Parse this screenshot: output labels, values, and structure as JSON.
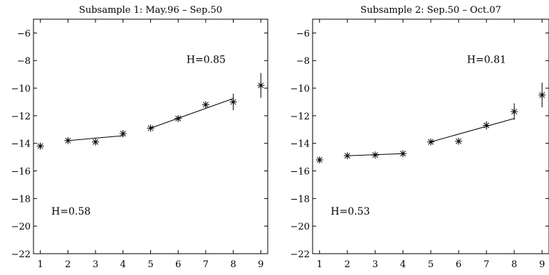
{
  "chart_data": [
    {
      "type": "scatter",
      "title": "Subsample 1: May.96 – Sep.50",
      "xlabel": "",
      "ylabel": "",
      "xlim": [
        0.75,
        9.25
      ],
      "ylim": [
        -22,
        -5
      ],
      "xticks": [
        1,
        2,
        3,
        4,
        5,
        6,
        7,
        8,
        9
      ],
      "yticks": [
        -6,
        -8,
        -10,
        -12,
        -14,
        -16,
        -18,
        -20,
        -22
      ],
      "grid": false,
      "points": [
        {
          "x": 1,
          "y": -14.2,
          "err": 0.15
        },
        {
          "x": 2,
          "y": -13.8,
          "err": 0.15
        },
        {
          "x": 3,
          "y": -13.9,
          "err": 0.15
        },
        {
          "x": 4,
          "y": -13.3,
          "err": 0.2
        },
        {
          "x": 5,
          "y": -12.9,
          "err": 0.15
        },
        {
          "x": 6,
          "y": -12.2,
          "err": 0.15
        },
        {
          "x": 7,
          "y": -11.2,
          "err": 0.2
        },
        {
          "x": 8,
          "y": -11.0,
          "err": 0.6
        },
        {
          "x": 9,
          "y": -9.8,
          "err": 0.9
        }
      ],
      "fit_lines": [
        {
          "x1": 2,
          "y1": -13.8,
          "x2": 4,
          "y2": -13.45
        },
        {
          "x1": 5,
          "y1": -12.9,
          "x2": 8,
          "y2": -10.75
        }
      ],
      "annotations": [
        {
          "text": "H=0.85",
          "x": 6.3,
          "y": -7.9
        },
        {
          "text": "H=0.58",
          "x": 1.4,
          "y": -18.9
        }
      ]
    },
    {
      "type": "scatter",
      "title": "Subsample 2: Sep.50 – Oct.07",
      "xlabel": "",
      "ylabel": "",
      "xlim": [
        0.75,
        9.25
      ],
      "ylim": [
        -22,
        -5
      ],
      "xticks": [
        1,
        2,
        3,
        4,
        5,
        6,
        7,
        8,
        9
      ],
      "yticks": [
        -6,
        -8,
        -10,
        -12,
        -14,
        -16,
        -18,
        -20,
        -22
      ],
      "grid": false,
      "points": [
        {
          "x": 1,
          "y": -15.2,
          "err": 0.15
        },
        {
          "x": 2,
          "y": -14.9,
          "err": 0.15
        },
        {
          "x": 3,
          "y": -14.85,
          "err": 0.15
        },
        {
          "x": 4,
          "y": -14.75,
          "err": 0.15
        },
        {
          "x": 5,
          "y": -13.9,
          "err": 0.15
        },
        {
          "x": 6,
          "y": -13.85,
          "err": 0.15
        },
        {
          "x": 7,
          "y": -12.7,
          "err": 0.3
        },
        {
          "x": 8,
          "y": -11.7,
          "err": 0.6
        },
        {
          "x": 9,
          "y": -10.5,
          "err": 0.9
        }
      ],
      "fit_lines": [
        {
          "x1": 2,
          "y1": -14.9,
          "x2": 4,
          "y2": -14.75
        },
        {
          "x1": 5,
          "y1": -13.9,
          "x2": 8,
          "y2": -12.2
        }
      ],
      "annotations": [
        {
          "text": "H=0.81",
          "x": 6.3,
          "y": -7.9
        },
        {
          "text": "H=0.53",
          "x": 1.4,
          "y": -18.9
        }
      ]
    }
  ]
}
